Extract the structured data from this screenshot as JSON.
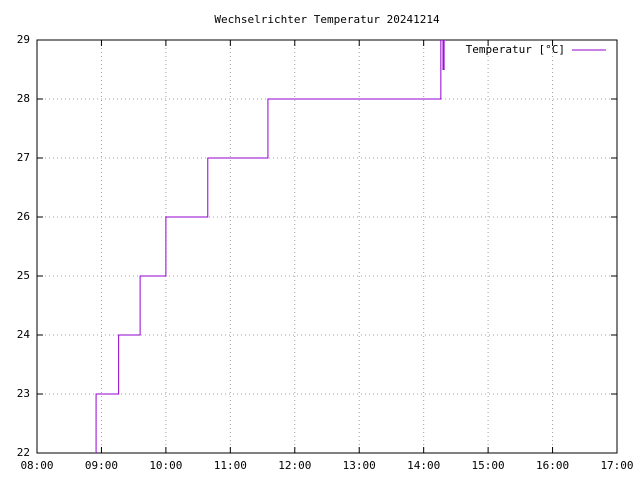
{
  "chart_data": {
    "type": "step",
    "title": "Wechselrichter Temperatur 20241214",
    "x": [
      "08:54",
      "08:55",
      "09:16",
      "09:36",
      "10:00",
      "10:39",
      "11:35",
      "14:16",
      "14:18",
      "14:19",
      "14:20"
    ],
    "series": [
      {
        "name": "Temperatur [°C]",
        "color": "#9400d3",
        "values": [
          22,
          23,
          24,
          25,
          26,
          27,
          28,
          29,
          28.5,
          29,
          29
        ]
      }
    ],
    "xlim": [
      "08:00",
      "17:00"
    ],
    "xticks": [
      "08:00",
      "09:00",
      "10:00",
      "11:00",
      "12:00",
      "13:00",
      "14:00",
      "15:00",
      "16:00",
      "17:00"
    ],
    "ylim": [
      22,
      29
    ],
    "yticks": [
      22,
      23,
      24,
      25,
      26,
      27,
      28,
      29
    ],
    "grid": true,
    "legend": "top-right"
  }
}
